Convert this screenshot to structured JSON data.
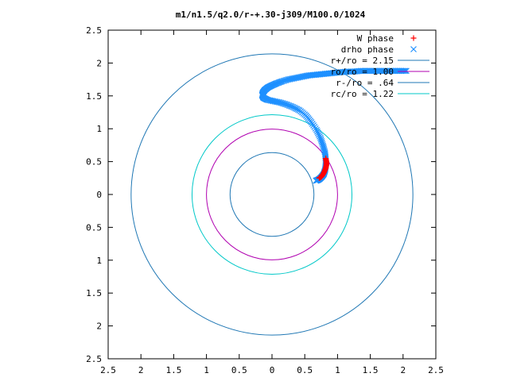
{
  "chart_data": {
    "type": "scatter",
    "title": "m1/n1.5/q2.0/r-+.30-j309/M100.0/1024",
    "xlim": [
      -2.5,
      2.5
    ],
    "ylim": [
      -2.5,
      2.5
    ],
    "x_ticks": [
      -2.5,
      -2,
      -1.5,
      -1,
      -0.5,
      0,
      0.5,
      1,
      1.5,
      2,
      2.5
    ],
    "x_tick_labels": [
      "2.5",
      "2",
      "1.5",
      "1",
      "0.5",
      "0",
      "0.5",
      "1",
      "1.5",
      "2",
      "2.5"
    ],
    "y_ticks": [
      2.5,
      2,
      1.5,
      1,
      0.5,
      0,
      -0.5,
      -1,
      -1.5,
      -2,
      -2.5
    ],
    "y_tick_labels": [
      "2.5",
      "2",
      "1.5",
      "1",
      "0.5",
      "0",
      "0.5",
      "1",
      "1.5",
      "2",
      "2.5"
    ],
    "grid": false,
    "legend_position": "top-right",
    "series": [
      {
        "name": "W phase",
        "marker": "+",
        "color": "#ff0000",
        "points": [
          [
            0.82,
            0.55
          ],
          [
            0.83,
            0.5
          ],
          [
            0.83,
            0.45
          ],
          [
            0.82,
            0.4
          ],
          [
            0.8,
            0.35
          ],
          [
            0.78,
            0.31
          ],
          [
            0.76,
            0.28
          ],
          [
            0.74,
            0.26
          ],
          [
            0.72,
            0.25
          ]
        ]
      },
      {
        "name": "drho phase",
        "marker": "x",
        "color": "#1e90ff",
        "points": [
          [
            2.05,
            1.88
          ],
          [
            1.95,
            1.88
          ],
          [
            1.85,
            1.88
          ],
          [
            1.75,
            1.88
          ],
          [
            1.65,
            1.88
          ],
          [
            1.55,
            1.88
          ],
          [
            1.45,
            1.88
          ],
          [
            1.35,
            1.88
          ],
          [
            1.25,
            1.87
          ],
          [
            1.15,
            1.87
          ],
          [
            1.05,
            1.86
          ],
          [
            0.95,
            1.85
          ],
          [
            0.85,
            1.84
          ],
          [
            0.75,
            1.83
          ],
          [
            0.65,
            1.82
          ],
          [
            0.55,
            1.81
          ],
          [
            0.45,
            1.79
          ],
          [
            0.35,
            1.77
          ],
          [
            0.25,
            1.75
          ],
          [
            0.15,
            1.72
          ],
          [
            0.07,
            1.69
          ],
          [
            0.0,
            1.66
          ],
          [
            -0.06,
            1.63
          ],
          [
            -0.11,
            1.59
          ],
          [
            -0.14,
            1.55
          ],
          [
            -0.15,
            1.51
          ],
          [
            -0.13,
            1.47
          ],
          [
            -0.07,
            1.44
          ],
          [
            0.02,
            1.42
          ],
          [
            0.12,
            1.4
          ],
          [
            0.22,
            1.37
          ],
          [
            0.32,
            1.33
          ],
          [
            0.42,
            1.28
          ],
          [
            0.52,
            1.2
          ],
          [
            0.6,
            1.1
          ],
          [
            0.68,
            0.98
          ],
          [
            0.74,
            0.86
          ],
          [
            0.78,
            0.74
          ],
          [
            0.81,
            0.63
          ],
          [
            0.82,
            0.53
          ],
          [
            0.82,
            0.44
          ],
          [
            0.81,
            0.37
          ],
          [
            0.79,
            0.31
          ],
          [
            0.76,
            0.27
          ],
          [
            0.73,
            0.24
          ],
          [
            0.7,
            0.22
          ],
          [
            0.67,
            0.21
          ]
        ]
      }
    ],
    "circles": [
      {
        "name": "r+/ro = 2.15",
        "r": 2.15,
        "color": "#1f77b4"
      },
      {
        "name": "ro/ro = 1.00",
        "r": 1.0,
        "color": "#b000b0"
      },
      {
        "name": "r-/ro = .64",
        "r": 0.64,
        "color": "#1f77b4"
      },
      {
        "name": "rc/ro = 1.22",
        "r": 1.22,
        "color": "#00c8c8"
      }
    ]
  }
}
